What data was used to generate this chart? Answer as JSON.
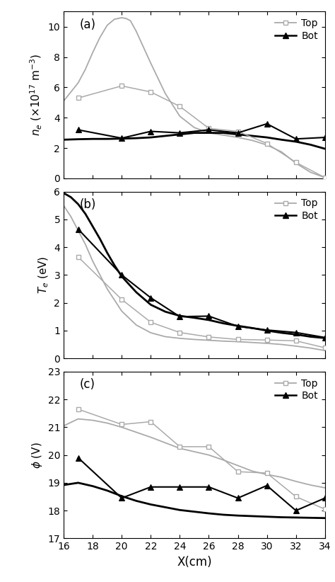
{
  "panel_a": {
    "label": "(a)",
    "ylim": [
      0,
      11
    ],
    "yticks": [
      0,
      2,
      4,
      6,
      8,
      10
    ],
    "top_smooth_x": [
      16,
      16.5,
      17,
      17.5,
      18,
      18.5,
      19,
      19.5,
      20,
      20.3,
      20.6,
      21,
      22,
      23,
      24,
      25,
      26,
      27,
      28,
      29,
      30,
      31,
      32,
      33,
      34
    ],
    "top_smooth_y": [
      5.1,
      5.7,
      6.3,
      7.2,
      8.3,
      9.3,
      10.1,
      10.5,
      10.6,
      10.55,
      10.4,
      9.7,
      7.6,
      5.6,
      4.1,
      3.35,
      3.0,
      2.85,
      2.7,
      2.5,
      2.2,
      1.75,
      1.0,
      0.4,
      0.05
    ],
    "top_marker_x": [
      17,
      20,
      22,
      24,
      26,
      28,
      30,
      32,
      34
    ],
    "top_marker_y": [
      5.3,
      6.1,
      5.7,
      4.75,
      3.3,
      3.1,
      2.3,
      1.05,
      0.05
    ],
    "bot_smooth_x": [
      16,
      17,
      18,
      19,
      20,
      21,
      22,
      23,
      24,
      25,
      26,
      27,
      28,
      29,
      30,
      31,
      32,
      33,
      34
    ],
    "bot_smooth_y": [
      2.55,
      2.58,
      2.6,
      2.6,
      2.62,
      2.65,
      2.7,
      2.8,
      2.9,
      3.0,
      3.0,
      3.0,
      2.9,
      2.8,
      2.7,
      2.55,
      2.42,
      2.22,
      1.95
    ],
    "bot_marker_x": [
      17,
      20,
      22,
      24,
      26,
      28,
      30,
      32,
      34
    ],
    "bot_marker_y": [
      3.2,
      2.65,
      3.1,
      3.0,
      3.2,
      3.0,
      3.6,
      2.6,
      2.7
    ]
  },
  "panel_b": {
    "label": "(b)",
    "ylim": [
      0,
      6
    ],
    "yticks": [
      0,
      1,
      2,
      3,
      4,
      5,
      6
    ],
    "top_smooth_x": [
      16,
      16.5,
      17,
      17.5,
      18,
      18.5,
      19,
      19.5,
      20,
      21,
      22,
      23,
      24,
      25,
      26,
      27,
      28,
      29,
      30,
      31,
      32,
      33,
      34
    ],
    "top_smooth_y": [
      5.5,
      5.1,
      4.6,
      4.1,
      3.5,
      3.0,
      2.5,
      2.1,
      1.7,
      1.2,
      0.92,
      0.78,
      0.72,
      0.68,
      0.65,
      0.62,
      0.6,
      0.57,
      0.54,
      0.5,
      0.44,
      0.37,
      0.28
    ],
    "top_marker_x": [
      17,
      20,
      22,
      24,
      26,
      28,
      30,
      32,
      34
    ],
    "top_marker_y": [
      3.65,
      2.12,
      1.3,
      0.93,
      0.77,
      0.68,
      0.66,
      0.63,
      0.38
    ],
    "bot_smooth_x": [
      16,
      16.5,
      17,
      17.5,
      18,
      18.5,
      19,
      19.5,
      20,
      21,
      22,
      23,
      24,
      25,
      26,
      27,
      28,
      29,
      30,
      31,
      32,
      33,
      34
    ],
    "bot_smooth_y": [
      5.95,
      5.8,
      5.55,
      5.2,
      4.75,
      4.3,
      3.8,
      3.35,
      2.95,
      2.38,
      1.93,
      1.68,
      1.53,
      1.46,
      1.38,
      1.26,
      1.17,
      1.09,
      1.0,
      0.92,
      0.86,
      0.78,
      0.73
    ],
    "bot_marker_x": [
      17,
      20,
      22,
      24,
      26,
      28,
      30,
      32,
      34
    ],
    "bot_marker_y": [
      4.65,
      3.0,
      2.18,
      1.5,
      1.52,
      1.15,
      1.02,
      0.93,
      0.75
    ]
  },
  "panel_c": {
    "label": "(c)",
    "ylim": [
      17,
      23
    ],
    "yticks": [
      17,
      18,
      19,
      20,
      21,
      22,
      23
    ],
    "top_smooth_x": [
      16,
      17,
      18,
      19,
      20,
      21,
      22,
      23,
      24,
      25,
      26,
      27,
      28,
      29,
      30,
      31,
      32,
      33,
      34
    ],
    "top_smooth_y": [
      21.05,
      21.3,
      21.25,
      21.15,
      21.0,
      20.82,
      20.64,
      20.44,
      20.24,
      20.12,
      20.0,
      19.82,
      19.62,
      19.42,
      19.3,
      19.2,
      19.05,
      18.92,
      18.82
    ],
    "top_marker_x": [
      17,
      20,
      22,
      24,
      26,
      28,
      30,
      32,
      34
    ],
    "top_marker_y": [
      21.65,
      21.1,
      21.2,
      20.3,
      20.3,
      19.4,
      19.35,
      18.5,
      18.05
    ],
    "bot_smooth_x": [
      16,
      17,
      18,
      19,
      20,
      21,
      22,
      23,
      24,
      25,
      26,
      27,
      28,
      29,
      30,
      31,
      32,
      33,
      34
    ],
    "bot_smooth_y": [
      18.92,
      19.0,
      18.88,
      18.72,
      18.52,
      18.35,
      18.22,
      18.12,
      18.02,
      17.96,
      17.9,
      17.85,
      17.82,
      17.8,
      17.78,
      17.76,
      17.75,
      17.74,
      17.73
    ],
    "bot_marker_x": [
      17,
      20,
      22,
      24,
      26,
      28,
      30,
      32,
      34
    ],
    "bot_marker_y": [
      19.9,
      18.45,
      18.85,
      18.85,
      18.85,
      18.45,
      18.9,
      18.0,
      18.45
    ]
  },
  "xlabel": "X(cm)",
  "xlim": [
    16,
    34
  ],
  "xticks": [
    16,
    18,
    20,
    22,
    24,
    26,
    28,
    30,
    32,
    34
  ],
  "top_color": "#aaaaaa",
  "bot_color": "#000000",
  "legend_top_label": "Top",
  "legend_bot_label": "Bot",
  "panel_a_ylabel": "$n_e$ ($\\times10^{17}$ m$^{-3}$)",
  "panel_b_ylabel": "$T_e$ (eV)",
  "panel_c_ylabel": "$\\phi$ (V)"
}
